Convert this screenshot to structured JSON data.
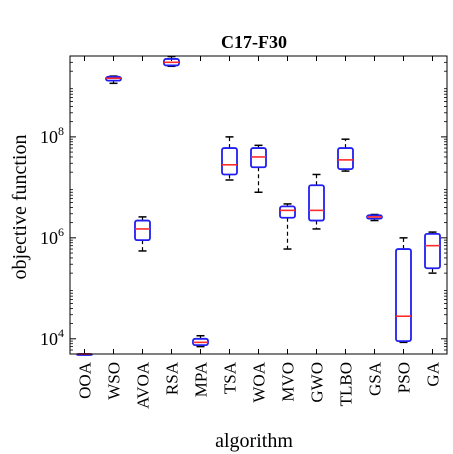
{
  "chart_data": {
    "type": "boxplot",
    "title": "C17-F30",
    "xlabel": "algorithm",
    "ylabel": "objective function",
    "yscale": "log",
    "ylim": [
      5000,
      4000000000
    ],
    "yticks": [
      {
        "value": 10000,
        "base": "10",
        "exp": "4"
      },
      {
        "value": 1000000,
        "base": "10",
        "exp": "6"
      },
      {
        "value": 100000000,
        "base": "10",
        "exp": "8"
      }
    ],
    "grid": false,
    "categories": [
      "OOA",
      "WSO",
      "AVOA",
      "RSA",
      "MPA",
      "TSA",
      "WOA",
      "MVO",
      "GWO",
      "TLBO",
      "GSA",
      "PSO",
      "GA"
    ],
    "boxes": [
      {
        "name": "OOA",
        "whisker_low": 5000,
        "q1": 5000,
        "median": 5000,
        "q3": 5000,
        "whisker_high": 5000
      },
      {
        "name": "WSO",
        "whisker_low": 1150000000,
        "q1": 1300000000,
        "median": 1450000000,
        "q3": 1550000000,
        "whisker_high": 1600000000
      },
      {
        "name": "AVOA",
        "whisker_low": 550000,
        "q1": 900000,
        "median": 1500000,
        "q3": 2200000,
        "whisker_high": 2600000
      },
      {
        "name": "RSA",
        "whisker_low": 2500000000,
        "q1": 2600000000,
        "median": 3000000000,
        "q3": 3500000000,
        "whisker_high": 3900000000
      },
      {
        "name": "MPA",
        "whisker_low": 7000,
        "q1": 7500,
        "median": 8500,
        "q3": 10000,
        "whisker_high": 11500
      },
      {
        "name": "TSA",
        "whisker_low": 14000000,
        "q1": 18000000,
        "median": 28000000,
        "q3": 60000000,
        "whisker_high": 100000000
      },
      {
        "name": "WOA",
        "whisker_low": 8000000,
        "q1": 25000000,
        "median": 40000000,
        "q3": 60000000,
        "whisker_high": 68000000
      },
      {
        "name": "MVO",
        "whisker_low": 600000,
        "q1": 2500000,
        "median": 3500000,
        "q3": 4200000,
        "whisker_high": 4700000
      },
      {
        "name": "GWO",
        "whisker_low": 1500000,
        "q1": 2200000,
        "median": 3500000,
        "q3": 11000000,
        "whisker_high": 18000000
      },
      {
        "name": "TLBO",
        "whisker_low": 21000000,
        "q1": 23000000,
        "median": 35000000,
        "q3": 60000000,
        "whisker_high": 90000000
      },
      {
        "name": "GSA",
        "whisker_low": 2200000,
        "q1": 2400000,
        "median": 2600000,
        "q3": 2800000,
        "whisker_high": 2900000
      },
      {
        "name": "PSO",
        "whisker_low": 8500,
        "q1": 9000,
        "median": 28000,
        "q3": 600000,
        "whisker_high": 1000000
      },
      {
        "name": "GA",
        "whisker_low": 200000,
        "q1": 250000,
        "median": 700000,
        "q3": 1200000,
        "whisker_high": 1300000
      }
    ],
    "colors": {
      "box": "#1f1ff0",
      "median": "#ff2a2a",
      "whisker": "#000000",
      "axis": "#000000"
    }
  }
}
